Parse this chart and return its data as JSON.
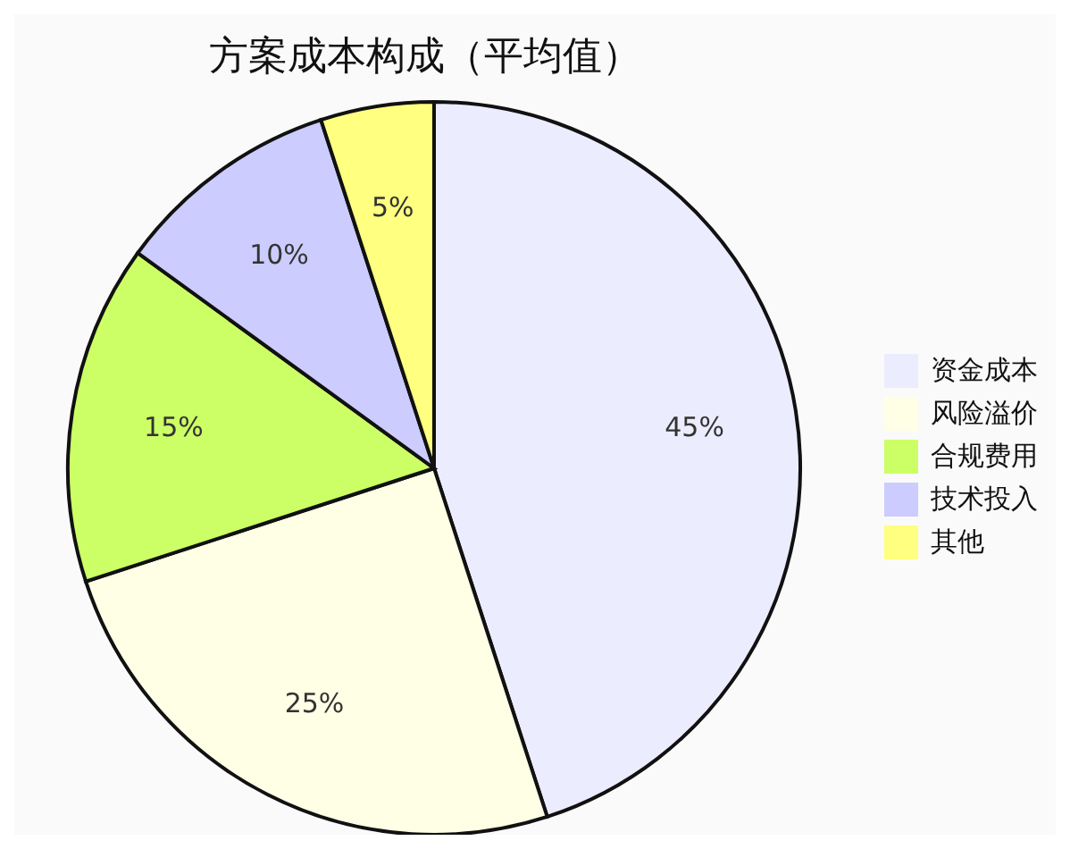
{
  "chart_data": {
    "type": "pie",
    "title": "方案成本构成（平均值）",
    "categories": [
      "资金成本",
      "风险溢价",
      "合规费用",
      "技术投入",
      "其他"
    ],
    "values": [
      45,
      25,
      15,
      10,
      5
    ],
    "value_labels": [
      "45%",
      "25%",
      "15%",
      "10%",
      "5%"
    ],
    "colors": [
      "#ececff",
      "#ffffe6",
      "#ccff66",
      "#ccccff",
      "#ffff80"
    ],
    "legend": "right"
  }
}
